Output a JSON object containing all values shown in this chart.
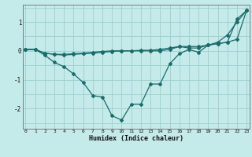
{
  "x": [
    0,
    1,
    2,
    3,
    4,
    5,
    6,
    7,
    8,
    9,
    10,
    11,
    12,
    13,
    14,
    15,
    16,
    17,
    18,
    19,
    20,
    21,
    22,
    23
  ],
  "line1": [
    0.05,
    0.05,
    -0.15,
    -0.4,
    -0.55,
    -0.8,
    -1.1,
    -1.55,
    -1.6,
    -2.25,
    -2.4,
    -1.85,
    -1.85,
    -1.15,
    -1.15,
    -0.45,
    -0.1,
    0.05,
    -0.05,
    0.2,
    0.3,
    0.55,
    1.0,
    1.4
  ],
  "line2": [
    0.05,
    0.05,
    -0.08,
    -0.12,
    -0.15,
    -0.12,
    -0.1,
    -0.08,
    -0.05,
    -0.02,
    0.0,
    0.0,
    0.02,
    0.02,
    0.05,
    0.1,
    0.15,
    0.15,
    0.15,
    0.2,
    0.25,
    0.3,
    0.4,
    1.4
  ],
  "line3": [
    0.05,
    0.05,
    -0.08,
    -0.12,
    -0.12,
    -0.1,
    -0.08,
    -0.05,
    -0.02,
    0.0,
    0.0,
    0.0,
    0.0,
    0.0,
    0.0,
    0.05,
    0.15,
    0.1,
    0.1,
    0.2,
    0.25,
    0.3,
    1.1,
    1.4
  ],
  "line_color": "#1a6b6b",
  "bg_color": "#c5eaea",
  "grid_color": "#9ecece",
  "xlabel": "Humidex (Indice chaleur)",
  "ylim": [
    -2.7,
    1.6
  ],
  "xlim": [
    -0.3,
    23.3
  ],
  "yticks": [
    -2,
    -1,
    0,
    1
  ],
  "xticks": [
    0,
    1,
    2,
    3,
    4,
    5,
    6,
    7,
    8,
    9,
    10,
    11,
    12,
    13,
    14,
    15,
    16,
    17,
    18,
    19,
    20,
    21,
    22,
    23
  ]
}
